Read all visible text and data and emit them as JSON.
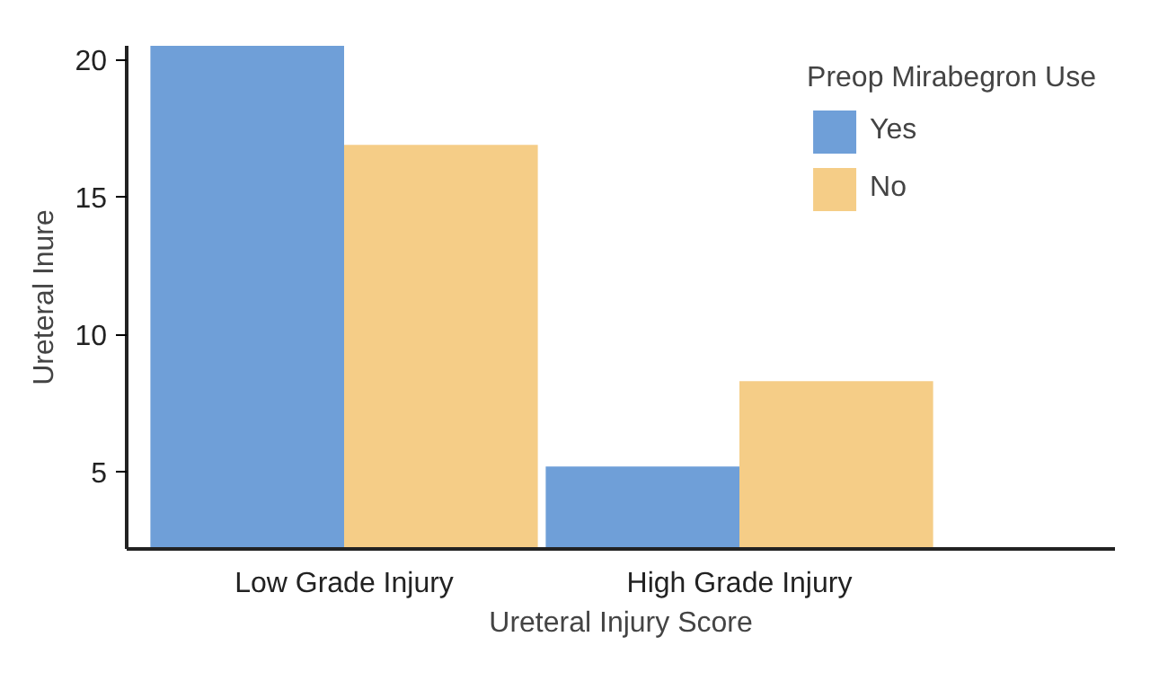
{
  "chart_data": {
    "type": "bar",
    "categories": [
      "Low Grade Injury",
      "High Grade Injury"
    ],
    "xlabel": "Ureteral Injury Score",
    "ylabel": "Ureteral Inure",
    "legend_title": "Preop Mirabegron Use",
    "series": [
      {
        "name": "Yes",
        "color": "#6f9fd8",
        "values": [
          20.5,
          5.2
        ]
      },
      {
        "name": "No",
        "color": "#f5cd87",
        "values": [
          16.9,
          8.3
        ]
      }
    ],
    "ylim": [
      2.2,
      20.5
    ],
    "yticks": [
      5,
      10,
      15,
      20
    ],
    "grid": false,
    "legend": "top right"
  }
}
